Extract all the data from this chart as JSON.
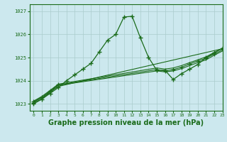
{
  "title": "Graphe pression niveau de la mer (hPa)",
  "xlim": [
    -0.5,
    23
  ],
  "ylim": [
    1022.7,
    1027.3
  ],
  "yticks": [
    1023,
    1024,
    1025,
    1026,
    1027
  ],
  "xticks": [
    0,
    1,
    2,
    3,
    4,
    5,
    6,
    7,
    8,
    9,
    10,
    11,
    12,
    13,
    14,
    15,
    16,
    17,
    18,
    19,
    20,
    21,
    22,
    23
  ],
  "bg_color": "#cce8ee",
  "grid_color": "#aacccc",
  "line_color": "#1a6b1a",
  "main_x": [
    0,
    1,
    2,
    3,
    4,
    5,
    6,
    7,
    8,
    9,
    10,
    11,
    12,
    13,
    14,
    15,
    16,
    17,
    18,
    19,
    20,
    21,
    22,
    23
  ],
  "main_y": [
    1023.0,
    1023.2,
    1023.45,
    1023.7,
    1024.0,
    1024.25,
    1024.5,
    1024.75,
    1025.25,
    1025.75,
    1026.0,
    1026.75,
    1026.78,
    1025.85,
    1025.0,
    1024.45,
    1024.45,
    1024.05,
    1024.3,
    1024.5,
    1024.7,
    1025.0,
    1025.2,
    1025.4
  ],
  "band_line1_x": [
    0,
    1,
    2,
    3,
    23
  ],
  "band_line1_y": [
    1023.05,
    1023.2,
    1023.5,
    1023.75,
    1025.38
  ],
  "band_line2_x": [
    0,
    1,
    2,
    3,
    15,
    16,
    17,
    18,
    19,
    20,
    21,
    22,
    23
  ],
  "band_line2_y": [
    1023.08,
    1023.25,
    1023.52,
    1023.8,
    1024.42,
    1024.38,
    1024.42,
    1024.52,
    1024.65,
    1024.78,
    1024.9,
    1025.1,
    1025.28
  ],
  "band_line3_x": [
    0,
    1,
    2,
    3,
    15,
    16,
    17,
    18,
    19,
    20,
    21,
    22,
    23
  ],
  "band_line3_y": [
    1023.1,
    1023.28,
    1023.55,
    1023.82,
    1024.48,
    1024.42,
    1024.48,
    1024.58,
    1024.72,
    1024.85,
    1024.97,
    1025.15,
    1025.33
  ],
  "band_line4_x": [
    0,
    1,
    2,
    3,
    15,
    16,
    17,
    18,
    19,
    20,
    21,
    22,
    23
  ],
  "band_line4_y": [
    1023.12,
    1023.32,
    1023.58,
    1023.85,
    1024.55,
    1024.5,
    1024.55,
    1024.65,
    1024.78,
    1024.9,
    1025.03,
    1025.22,
    1025.4
  ],
  "band_markers_x": [
    0,
    1,
    2,
    3,
    15,
    16,
    17,
    18,
    19,
    20,
    21,
    22,
    23
  ],
  "band_markers_y": [
    1023.1,
    1023.28,
    1023.55,
    1023.82,
    1024.48,
    1024.42,
    1024.48,
    1024.58,
    1024.72,
    1024.85,
    1024.97,
    1025.15,
    1025.4
  ]
}
